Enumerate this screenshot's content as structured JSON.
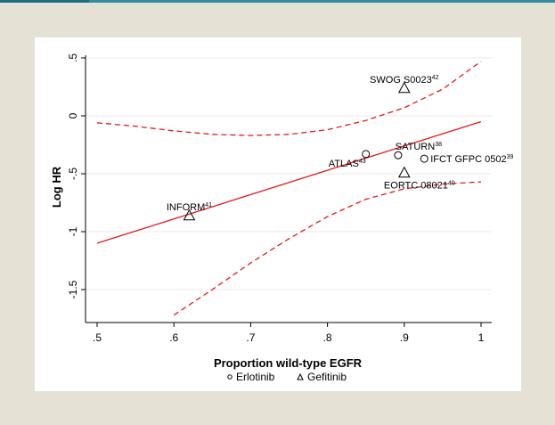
{
  "chart_data": {
    "type": "scatter",
    "title": "",
    "xlabel": "Proportion wild-type EGFR",
    "ylabel": "Log HR",
    "xlim": [
      0.5,
      1.0
    ],
    "ylim": [
      -1.75,
      0.5
    ],
    "x_ticks": [
      0.5,
      0.6,
      0.7,
      0.8,
      0.9,
      1.0
    ],
    "x_tick_labels": [
      ".5",
      ".6",
      ".7",
      ".8",
      ".9",
      "1"
    ],
    "y_ticks": [
      0.5,
      0.0,
      -0.5,
      -1.0,
      -1.5
    ],
    "y_tick_labels": [
      ".5",
      "0",
      "-.5",
      "-1",
      "-1.5"
    ],
    "grid": "horizontal",
    "colors": {
      "fit": "#e31a1c",
      "markers": "#000000"
    },
    "points": [
      {
        "label": "SWOG S0023",
        "sup": "42",
        "x": 0.9,
        "y": 0.24,
        "series": "Gefitinib",
        "label_pos": "above"
      },
      {
        "label": "SATURN",
        "sup": "38",
        "x": 0.892,
        "y": -0.34,
        "series": "Erlotinib",
        "label_pos": "above-right"
      },
      {
        "label": "ATLAS",
        "sup": "43",
        "x": 0.85,
        "y": -0.33,
        "series": "Erlotinib",
        "label_pos": "below-left"
      },
      {
        "label": "IFCT GFPC 0502",
        "sup": "39",
        "x": 0.926,
        "y": -0.37,
        "series": "Erlotinib",
        "label_pos": "right"
      },
      {
        "label": "EORTC 08021",
        "sup": "40",
        "x": 0.9,
        "y": -0.49,
        "series": "Gefitinib",
        "label_pos": "below"
      },
      {
        "label": "INFORM",
        "sup": "41",
        "x": 0.62,
        "y": -0.86,
        "series": "Gefitinib",
        "label_pos": "above"
      }
    ],
    "fit_line": {
      "x": [
        0.5,
        1.0
      ],
      "y": [
        -1.1,
        -0.05
      ]
    },
    "ci_upper": {
      "x": [
        0.5,
        0.55,
        0.6,
        0.65,
        0.7,
        0.75,
        0.8,
        0.85,
        0.9,
        0.95,
        1.0
      ],
      "y": [
        -0.06,
        -0.09,
        -0.13,
        -0.16,
        -0.17,
        -0.16,
        -0.12,
        -0.04,
        0.07,
        0.23,
        0.47
      ]
    },
    "ci_lower": {
      "x": [
        0.6,
        0.65,
        0.7,
        0.75,
        0.8,
        0.85,
        0.9,
        0.95,
        1.0
      ],
      "y": [
        -1.72,
        -1.5,
        -1.27,
        -1.06,
        -0.87,
        -0.72,
        -0.63,
        -0.59,
        -0.57
      ]
    },
    "legend": {
      "position": "bottom",
      "items": [
        {
          "symbol": "circle",
          "label": "Erlotinib"
        },
        {
          "symbol": "triangle",
          "label": "Gefitinib"
        }
      ]
    }
  }
}
